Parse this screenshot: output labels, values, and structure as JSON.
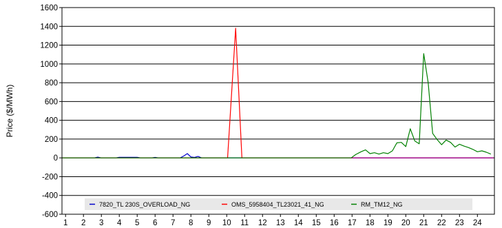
{
  "chart_data": {
    "type": "line",
    "title": "",
    "xlabel": "",
    "ylabel": "Price ($/MWh)",
    "xlim": [
      0.8,
      24.95
    ],
    "ylim": [
      -600,
      1600
    ],
    "y_ticks": [
      -600,
      -400,
      -200,
      0,
      200,
      400,
      600,
      800,
      1000,
      1200,
      1400,
      1600
    ],
    "x_ticks": [
      1,
      2,
      3,
      4,
      5,
      6,
      7,
      8,
      9,
      10,
      11,
      12,
      13,
      14,
      15,
      16,
      17,
      18,
      19,
      20,
      21,
      22,
      23,
      24
    ],
    "grid": "horizontal",
    "legend_position": "bottom",
    "series": [
      {
        "name": "7820_TL 230S_OVERLOAD_NG",
        "color": "#0000CC",
        "x": [
          0.8,
          2.6,
          2.8,
          3.0,
          3.8,
          4.0,
          4.6,
          5.0,
          5.2,
          5.8,
          6.0,
          6.2,
          7.4,
          7.6,
          7.8,
          8.0,
          8.2,
          8.4,
          8.6,
          8.8,
          24.9
        ],
        "y": [
          0,
          0,
          8,
          0,
          0,
          6,
          6,
          6,
          0,
          0,
          5,
          0,
          0,
          20,
          45,
          10,
          5,
          15,
          0,
          0,
          0
        ]
      },
      {
        "name": "OMS_5958404_TL23021_41_NG",
        "color": "#FF0000",
        "x": [
          0.8,
          10.05,
          10.5,
          10.85,
          24.9
        ],
        "y": [
          0,
          0,
          1380,
          0,
          0
        ]
      },
      {
        "name": "RM_TM12_NG",
        "color": "#008000",
        "x": [
          0.8,
          16.95,
          17.2,
          17.5,
          17.75,
          18.0,
          18.25,
          18.5,
          18.75,
          19.0,
          19.25,
          19.5,
          19.75,
          20.0,
          20.25,
          20.5,
          20.75,
          21.0,
          21.25,
          21.5,
          21.75,
          22.0,
          22.25,
          22.5,
          22.75,
          23.0,
          23.25,
          23.5,
          23.75,
          24.0,
          24.25,
          24.5,
          24.75
        ],
        "y": [
          0,
          0,
          35,
          65,
          85,
          45,
          55,
          40,
          55,
          45,
          75,
          160,
          165,
          120,
          310,
          180,
          150,
          1110,
          800,
          260,
          195,
          140,
          190,
          165,
          115,
          145,
          125,
          110,
          90,
          65,
          75,
          60,
          40
        ]
      },
      {
        "name": "",
        "color": "#990099",
        "x": [
          17.0,
          24.9
        ],
        "y": [
          0,
          0
        ]
      }
    ]
  }
}
